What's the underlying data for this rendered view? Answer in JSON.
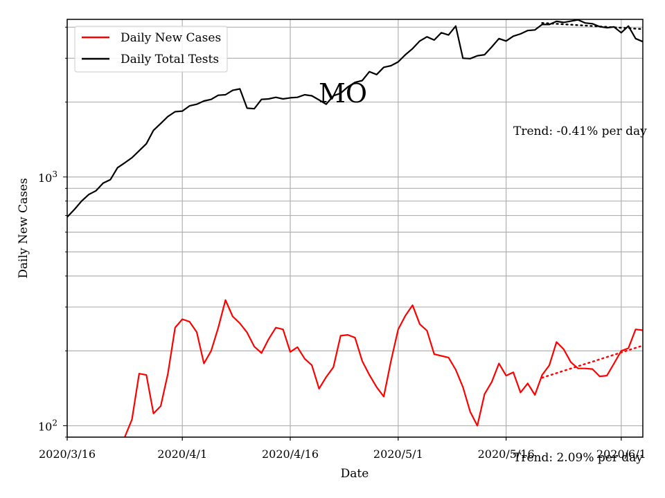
{
  "chart_data": {
    "type": "line",
    "title": "MO",
    "xlabel": "Date",
    "ylabel": "Daily New Cases",
    "yscale": "log",
    "ylim": [
      90,
      4300
    ],
    "xlim": [
      "2020-03-16",
      "2020-06-04"
    ],
    "grid": true,
    "legend_placement": "top-left",
    "x_ticks": [
      {
        "date": "2020-03-16",
        "label": "2020/3/16"
      },
      {
        "date": "2020-04-01",
        "label": "2020/4/1"
      },
      {
        "date": "2020-04-16",
        "label": "2020/4/16"
      },
      {
        "date": "2020-05-01",
        "label": "2020/5/1"
      },
      {
        "date": "2020-05-16",
        "label": "2020/5/16"
      },
      {
        "date": "2020-06-01",
        "label": "2020/6/1"
      }
    ],
    "y_ticks": [
      {
        "value": 100,
        "base": "10",
        "exp": "2"
      },
      {
        "value": 1000,
        "base": "10",
        "exp": "3"
      }
    ],
    "series": [
      {
        "name": "Daily New Cases",
        "color": "#ff0000",
        "x": [
          "2020-03-24",
          "2020-03-25",
          "2020-03-26",
          "2020-03-27",
          "2020-03-28",
          "2020-03-29",
          "2020-03-30",
          "2020-03-31",
          "2020-04-01",
          "2020-04-02",
          "2020-04-03",
          "2020-04-04",
          "2020-04-05",
          "2020-04-06",
          "2020-04-07",
          "2020-04-08",
          "2020-04-09",
          "2020-04-10",
          "2020-04-11",
          "2020-04-12",
          "2020-04-13",
          "2020-04-14",
          "2020-04-15",
          "2020-04-16",
          "2020-04-17",
          "2020-04-18",
          "2020-04-19",
          "2020-04-20",
          "2020-04-21",
          "2020-04-22",
          "2020-04-23",
          "2020-04-24",
          "2020-04-25",
          "2020-04-26",
          "2020-04-27",
          "2020-04-28",
          "2020-04-29",
          "2020-04-30",
          "2020-05-01",
          "2020-05-02",
          "2020-05-03",
          "2020-05-04",
          "2020-05-05",
          "2020-05-06",
          "2020-05-07",
          "2020-05-08",
          "2020-05-09",
          "2020-05-10",
          "2020-05-11",
          "2020-05-12",
          "2020-05-13",
          "2020-05-14",
          "2020-05-15",
          "2020-05-16",
          "2020-05-17",
          "2020-05-18",
          "2020-05-19",
          "2020-05-20",
          "2020-05-21",
          "2020-05-22",
          "2020-05-23",
          "2020-05-24",
          "2020-05-25",
          "2020-05-26",
          "2020-05-27",
          "2020-05-28",
          "2020-05-29",
          "2020-05-30",
          "2020-05-31",
          "2020-06-01",
          "2020-06-02",
          "2020-06-03",
          "2020-06-04"
        ],
        "values": [
          90,
          106,
          162,
          160,
          112,
          120,
          162,
          248,
          268,
          262,
          238,
          178,
          200,
          248,
          320,
          275,
          258,
          237,
          208,
          196,
          223,
          248,
          244,
          198,
          207,
          186,
          175,
          141,
          157,
          172,
          230,
          232,
          226,
          182,
          160,
          143,
          131,
          182,
          244,
          277,
          305,
          256,
          241,
          194,
          191,
          188,
          168,
          143,
          114,
          100,
          134,
          150,
          178,
          159,
          164,
          136,
          148,
          133,
          160,
          175,
          217,
          203,
          180,
          170,
          170,
          169,
          158,
          159,
          178,
          200,
          205,
          244,
          242
        ]
      },
      {
        "name": "Daily Total Tests",
        "color": "#000000",
        "x": [
          "2020-03-16",
          "2020-03-17",
          "2020-03-18",
          "2020-03-19",
          "2020-03-20",
          "2020-03-21",
          "2020-03-22",
          "2020-03-23",
          "2020-03-24",
          "2020-03-25",
          "2020-03-26",
          "2020-03-27",
          "2020-03-28",
          "2020-03-29",
          "2020-03-30",
          "2020-03-31",
          "2020-04-01",
          "2020-04-02",
          "2020-04-03",
          "2020-04-04",
          "2020-04-05",
          "2020-04-06",
          "2020-04-07",
          "2020-04-08",
          "2020-04-09",
          "2020-04-10",
          "2020-04-11",
          "2020-04-12",
          "2020-04-13",
          "2020-04-14",
          "2020-04-15",
          "2020-04-16",
          "2020-04-17",
          "2020-04-18",
          "2020-04-19",
          "2020-04-20",
          "2020-04-21",
          "2020-04-22",
          "2020-04-23",
          "2020-04-24",
          "2020-04-25",
          "2020-04-26",
          "2020-04-27",
          "2020-04-28",
          "2020-04-29",
          "2020-04-30",
          "2020-05-01",
          "2020-05-02",
          "2020-05-03",
          "2020-05-04",
          "2020-05-05",
          "2020-05-06",
          "2020-05-07",
          "2020-05-08",
          "2020-05-09",
          "2020-05-10",
          "2020-05-11",
          "2020-05-12",
          "2020-05-13",
          "2020-05-14",
          "2020-05-15",
          "2020-05-16",
          "2020-05-17",
          "2020-05-18",
          "2020-05-19",
          "2020-05-20",
          "2020-05-21",
          "2020-05-22",
          "2020-05-23",
          "2020-05-24",
          "2020-05-25",
          "2020-05-26",
          "2020-05-27",
          "2020-05-28",
          "2020-05-29",
          "2020-05-30",
          "2020-05-31",
          "2020-06-01",
          "2020-06-02",
          "2020-06-03",
          "2020-06-04"
        ],
        "values": [
          690,
          740,
          800,
          850,
          880,
          945,
          975,
          1090,
          1140,
          1195,
          1275,
          1360,
          1540,
          1640,
          1750,
          1830,
          1840,
          1930,
          1960,
          2020,
          2050,
          2130,
          2140,
          2230,
          2260,
          1890,
          1880,
          2050,
          2060,
          2090,
          2060,
          2080,
          2090,
          2140,
          2120,
          2040,
          1960,
          2120,
          2170,
          2300,
          2400,
          2440,
          2650,
          2580,
          2760,
          2800,
          2900,
          3100,
          3280,
          3520,
          3660,
          3550,
          3800,
          3720,
          4040,
          3000,
          2990,
          3070,
          3100,
          3330,
          3600,
          3520,
          3680,
          3760,
          3880,
          3900,
          4100,
          4100,
          4220,
          4180,
          4230,
          4280,
          4160,
          4130,
          4020,
          3980,
          4010,
          3800,
          4040,
          3600,
          3500
        ]
      }
    ],
    "trends": [
      {
        "series": "Daily Total Tests",
        "label": "Trend: -0.41% per day",
        "start_date": "2020-05-21",
        "end_date": "2020-06-04",
        "start_value": 4160,
        "end_value": 3930
      },
      {
        "series": "Daily New Cases",
        "label": "Trend: 2.09% per day",
        "start_date": "2020-05-21",
        "end_date": "2020-06-04",
        "start_value": 156,
        "end_value": 210
      }
    ]
  }
}
